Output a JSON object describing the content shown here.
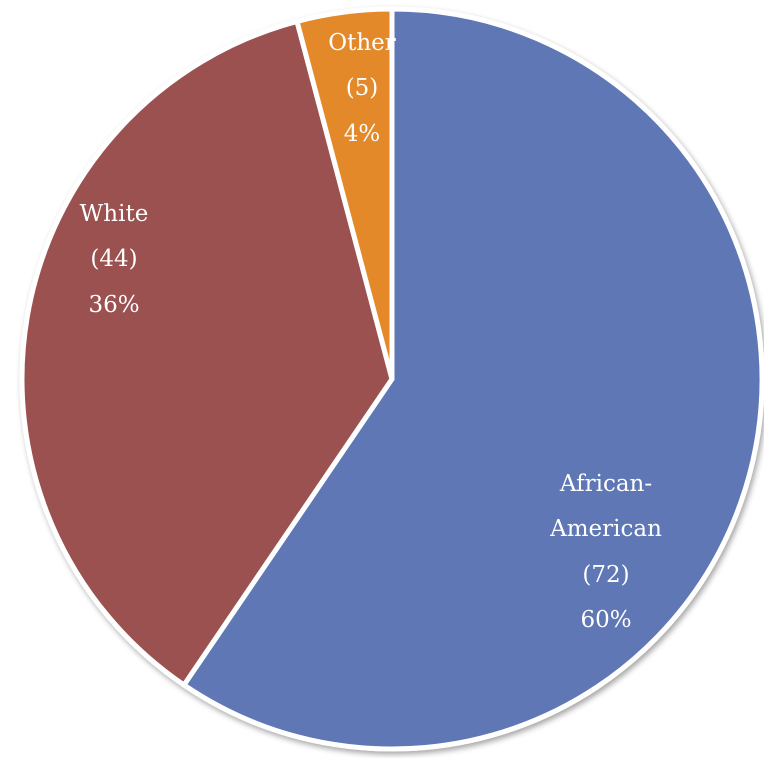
{
  "chart_data": {
    "type": "pie",
    "slices": [
      {
        "category": "African-American",
        "count": "(72)",
        "value": 72,
        "percent": "60%",
        "color": "#5e77b5"
      },
      {
        "category": "White",
        "count": "(44)",
        "value": 44,
        "percent": "36%",
        "color": "#9a5150"
      },
      {
        "category": "Other",
        "count": "(5)",
        "value": 5,
        "percent": "4%",
        "color": "#e3892b"
      }
    ]
  }
}
